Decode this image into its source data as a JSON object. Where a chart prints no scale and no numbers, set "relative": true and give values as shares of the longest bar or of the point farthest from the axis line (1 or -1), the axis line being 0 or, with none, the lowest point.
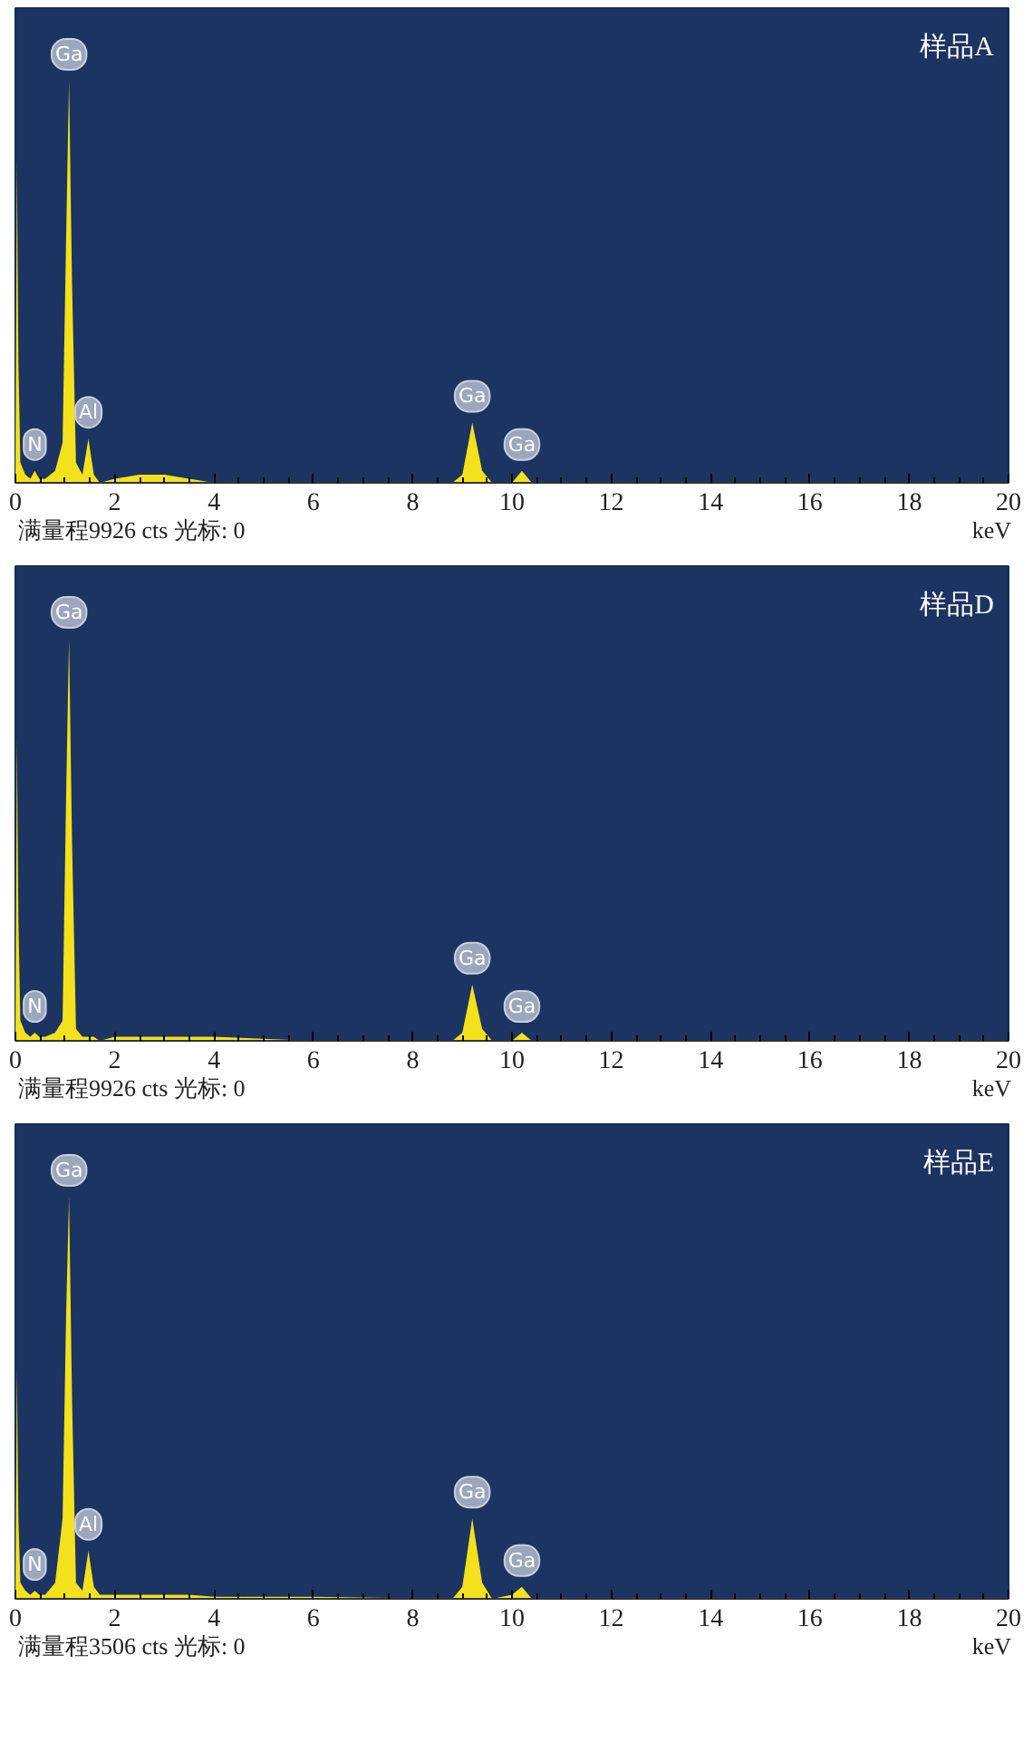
{
  "chart_data": [
    {
      "type": "area",
      "title": "样品A",
      "relative": true,
      "tick_labels": "x",
      "color": "#f2e11c",
      "x": [
        0,
        0.03,
        0.06,
        0.1,
        0.2,
        0.3,
        0.39,
        0.48,
        0.6,
        0.8,
        0.95,
        1.02,
        1.08,
        1.14,
        1.22,
        1.35,
        1.47,
        1.58,
        1.7,
        2.0,
        2.5,
        3.0,
        3.5,
        4.0,
        6.0,
        8.8,
        9.0,
        9.2,
        9.4,
        9.6,
        10.0,
        10.2,
        10.4,
        11.0,
        20
      ],
      "values": [
        0,
        0.8,
        0.3,
        0.05,
        0.02,
        0.01,
        0.03,
        0.01,
        0.01,
        0.03,
        0.1,
        0.6,
        1.0,
        0.5,
        0.05,
        0.02,
        0.11,
        0.02,
        0,
        0.01,
        0.02,
        0.02,
        0.01,
        0,
        0,
        0,
        0.02,
        0.15,
        0.03,
        0,
        0,
        0.03,
        0,
        0,
        0
      ],
      "xlim": [
        0,
        20
      ],
      "xticks": [
        0,
        2,
        4,
        6,
        8,
        10,
        12,
        14,
        16,
        18,
        20
      ],
      "annotations": [
        {
          "text": "N",
          "x": 0.39,
          "y": 0.03
        },
        {
          "text": "Ga",
          "x": 1.08,
          "y": 1.0
        },
        {
          "text": "Al",
          "x": 1.47,
          "y": 0.11
        },
        {
          "text": "Ga",
          "x": 9.2,
          "y": 0.15
        },
        {
          "text": "Ga",
          "x": 10.2,
          "y": 0.03
        },
        "满量程9926 cts 光标: 0",
        "keV"
      ]
    },
    {
      "type": "area",
      "title": "样品D",
      "relative": true,
      "tick_labels": "x",
      "color": "#f2e11c",
      "x": [
        0,
        0.03,
        0.06,
        0.1,
        0.2,
        0.3,
        0.39,
        0.48,
        0.6,
        0.8,
        0.95,
        1.02,
        1.08,
        1.14,
        1.22,
        1.35,
        1.47,
        1.58,
        1.7,
        2.0,
        2.5,
        3.0,
        3.5,
        4.0,
        6.0,
        8.8,
        9.0,
        9.2,
        9.4,
        9.6,
        10.0,
        10.2,
        10.4,
        11.0,
        20
      ],
      "values": [
        0,
        0.75,
        0.3,
        0.05,
        0.02,
        0.01,
        0.02,
        0.01,
        0.01,
        0.02,
        0.05,
        0.6,
        1.0,
        0.5,
        0.03,
        0.01,
        0.01,
        0.01,
        0,
        0.01,
        0.01,
        0.01,
        0.01,
        0.01,
        0,
        0,
        0.02,
        0.14,
        0.03,
        0,
        0,
        0.02,
        0,
        0,
        0
      ],
      "xlim": [
        0,
        20
      ],
      "xticks": [
        0,
        2,
        4,
        6,
        8,
        10,
        12,
        14,
        16,
        18,
        20
      ],
      "annotations": [
        {
          "text": "N",
          "x": 0.39,
          "y": 0.02
        },
        {
          "text": "Ga",
          "x": 1.08,
          "y": 1.0
        },
        {
          "text": "Ga",
          "x": 9.2,
          "y": 0.14
        },
        {
          "text": "Ga",
          "x": 10.2,
          "y": 0.02
        },
        "满量程9926 cts 光标: 0",
        "keV"
      ]
    },
    {
      "type": "area",
      "title": "样品E",
      "relative": true,
      "tick_labels": "x",
      "color": "#f2e11c",
      "x": [
        0,
        0.03,
        0.06,
        0.1,
        0.2,
        0.3,
        0.39,
        0.48,
        0.6,
        0.8,
        0.95,
        1.02,
        1.08,
        1.14,
        1.22,
        1.35,
        1.47,
        1.58,
        1.7,
        2.0,
        2.5,
        3.0,
        3.5,
        4.0,
        6.0,
        8.8,
        9.0,
        9.2,
        9.4,
        9.6,
        10.0,
        10.2,
        10.4,
        11.0,
        20
      ],
      "values": [
        0,
        0.57,
        0.2,
        0.04,
        0.02,
        0.01,
        0.02,
        0.01,
        0.01,
        0.04,
        0.2,
        0.7,
        1.0,
        0.5,
        0.04,
        0.02,
        0.12,
        0.03,
        0.01,
        0.01,
        0.01,
        0.01,
        0.01,
        0.005,
        0.005,
        0,
        0.03,
        0.2,
        0.04,
        0,
        0.01,
        0.03,
        0,
        0,
        0
      ],
      "xlim": [
        0,
        20
      ],
      "xticks": [
        0,
        2,
        4,
        6,
        8,
        10,
        12,
        14,
        16,
        18,
        20
      ],
      "annotations": [
        {
          "text": "N",
          "x": 0.39,
          "y": 0.02
        },
        {
          "text": "Ga",
          "x": 1.08,
          "y": 1.0
        },
        {
          "text": "Al",
          "x": 1.47,
          "y": 0.12
        },
        {
          "text": "Ga",
          "x": 9.2,
          "y": 0.2
        },
        {
          "text": "Ga",
          "x": 10.2,
          "y": 0.03
        },
        "满量程3506 cts 光标: 0",
        "keV"
      ]
    }
  ]
}
